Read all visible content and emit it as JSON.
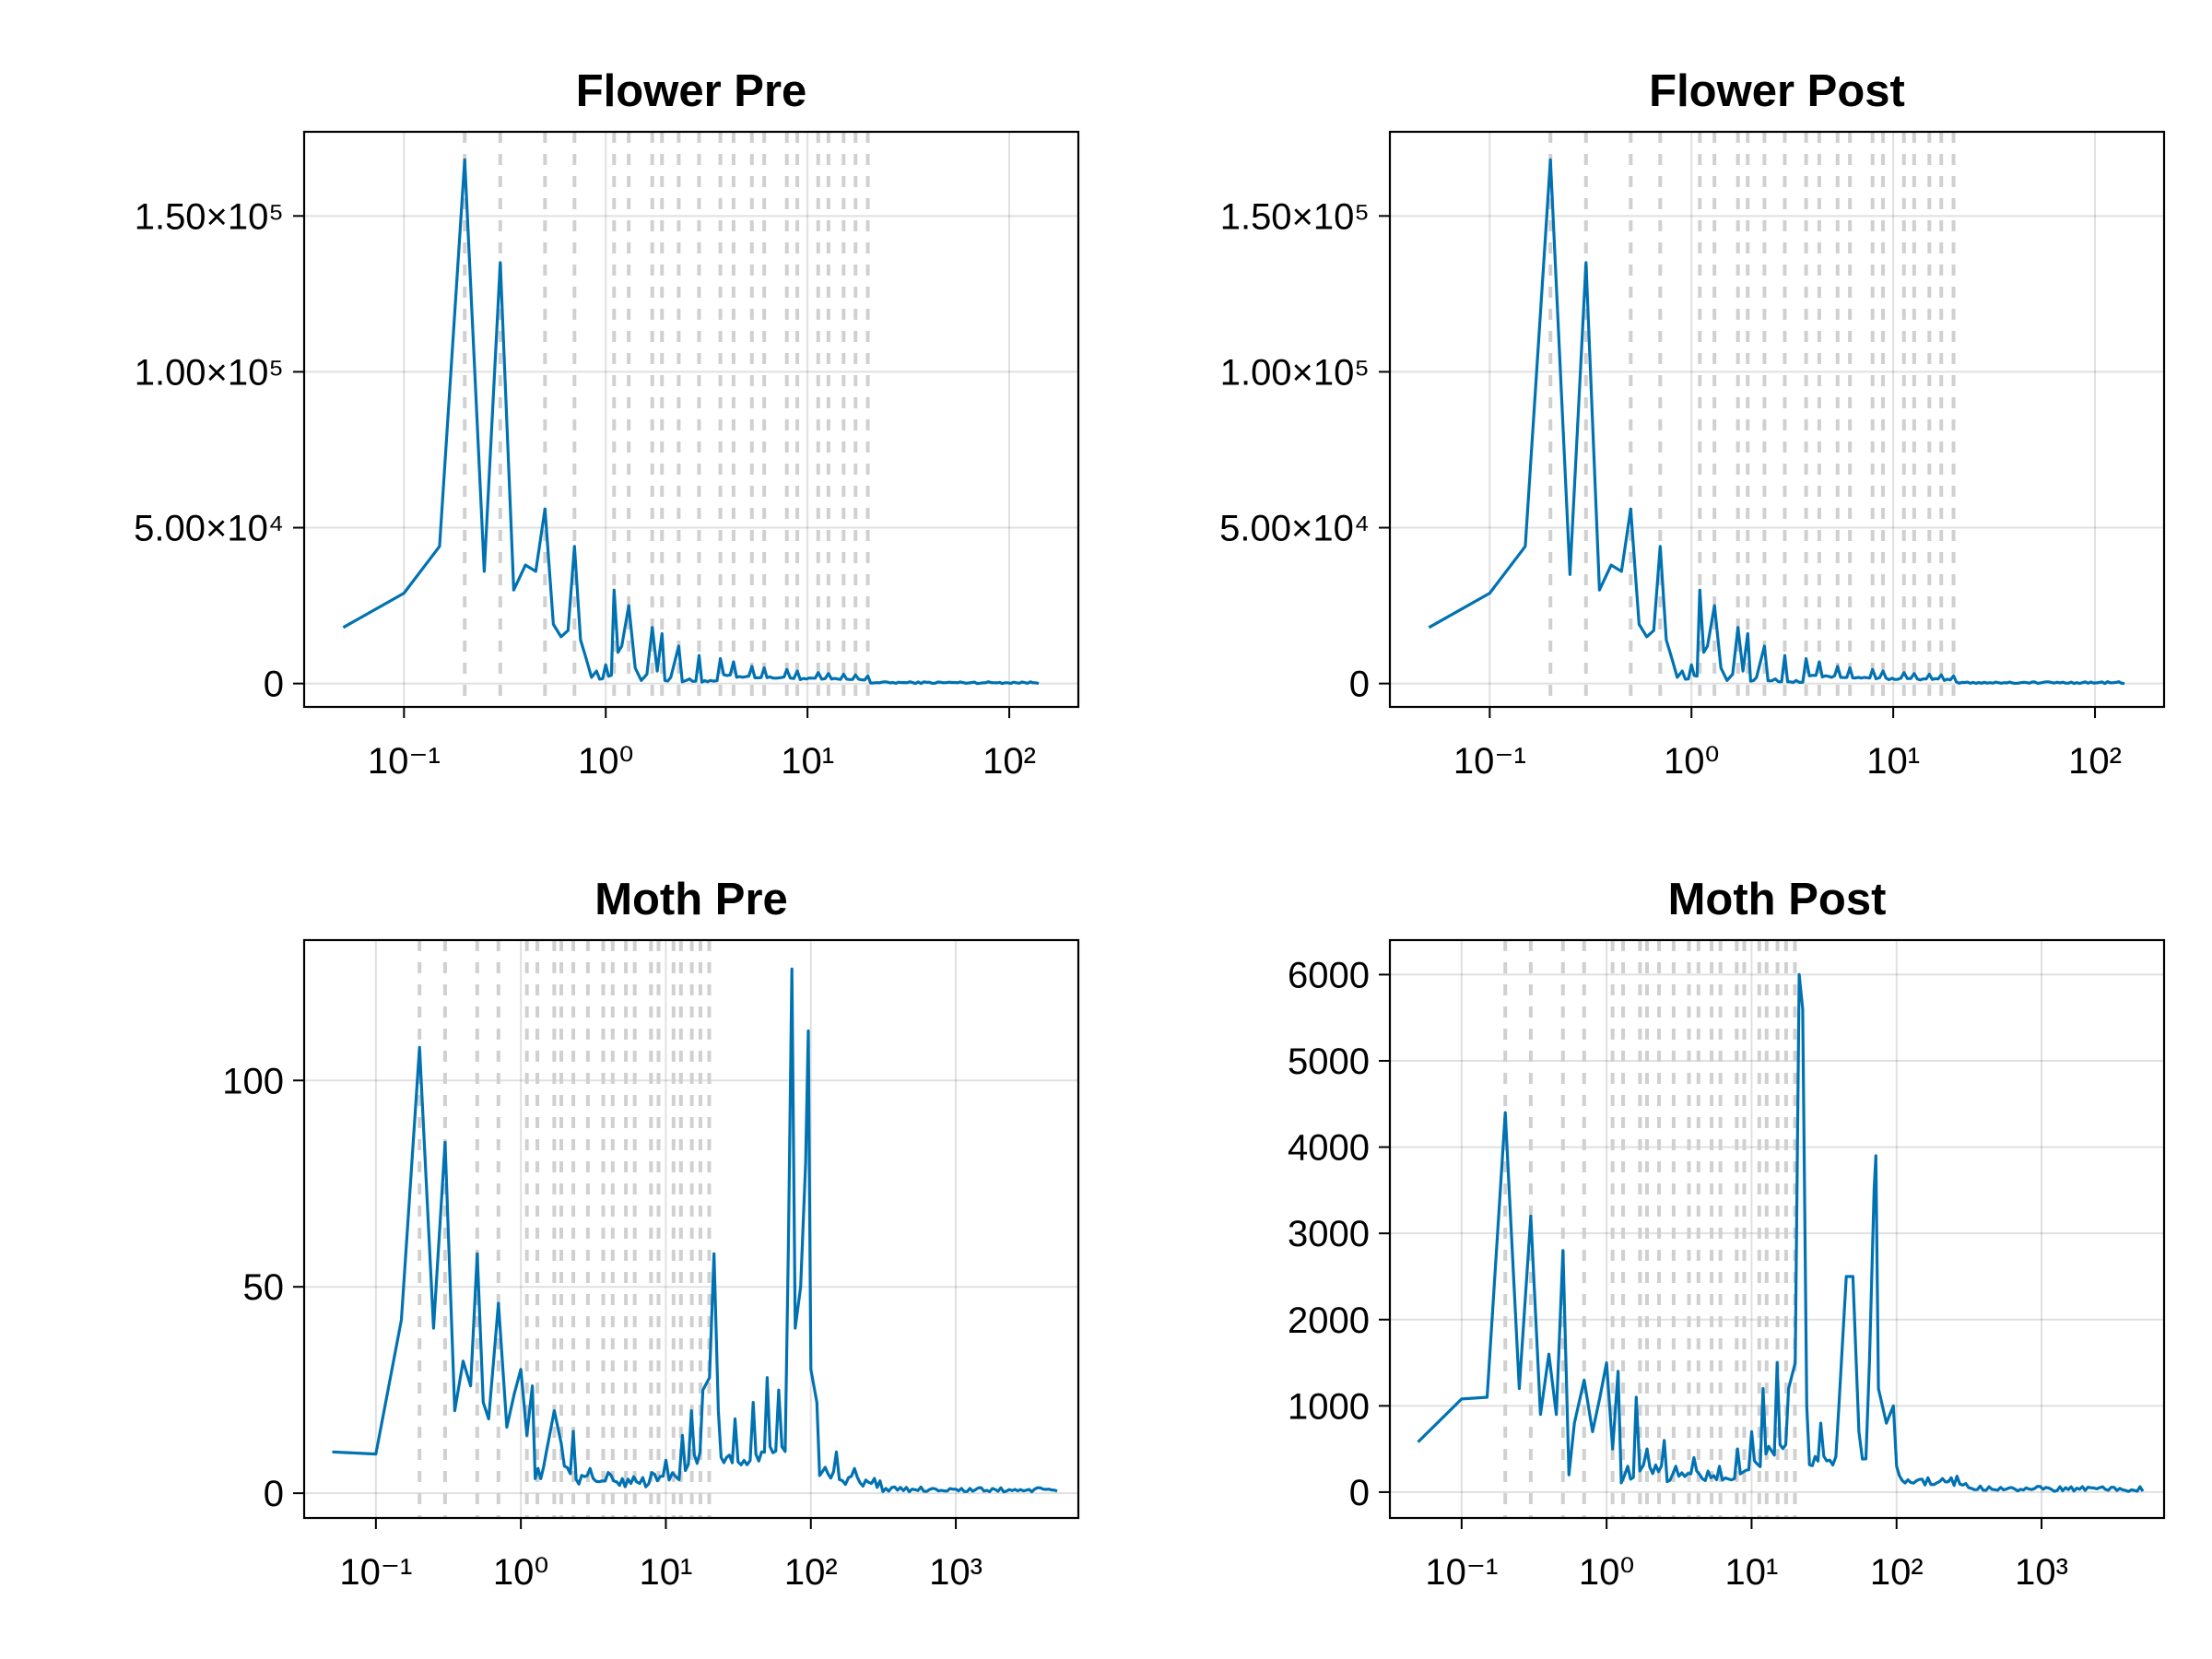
{
  "colors": {
    "series": "#0072b2",
    "marker": "#d0d0d0",
    "grid": "#e5e5e5"
  },
  "chart_data": [
    {
      "type": "line",
      "title": "Flower Pre",
      "xlabel": "",
      "ylabel": "",
      "xscale": "log",
      "xlim": [
        0.032,
        220
      ],
      "ylim": [
        -7500,
        177000
      ],
      "grid": true,
      "x_ticks": [
        0.1,
        1,
        10,
        100
      ],
      "x_tick_labels": [
        "10⁻¹",
        "10⁰",
        "10¹",
        "10²"
      ],
      "y_ticks": [
        0,
        50000,
        100000,
        150000
      ],
      "y_tick_labels": [
        "0",
        "5.00×10⁴",
        "1.00×10⁵",
        "1.50×10⁵"
      ],
      "markers": [
        0.2,
        0.3,
        0.5,
        0.7,
        1.1,
        1.3,
        1.7,
        1.9,
        2.3,
        2.9,
        3.7,
        4.3,
        5.3,
        6.1,
        7.9,
        8.9,
        11.3,
        12.7,
        15.1,
        17.3,
        19.9
      ],
      "peaks": [
        [
          0.05,
          18000
        ],
        [
          0.1,
          29000
        ],
        [
          0.15,
          44000
        ],
        [
          0.2,
          168000
        ],
        [
          0.25,
          36000
        ],
        [
          0.3,
          135000
        ],
        [
          0.35,
          30000
        ],
        [
          0.4,
          38000
        ],
        [
          0.45,
          36000
        ],
        [
          0.5,
          56000
        ],
        [
          0.55,
          19000
        ],
        [
          0.6,
          15000
        ],
        [
          0.65,
          17000
        ],
        [
          0.7,
          44000
        ],
        [
          0.75,
          14000
        ],
        [
          0.8,
          8000
        ],
        [
          0.85,
          2000
        ],
        [
          0.9,
          4000
        ],
        [
          1.0,
          6000
        ],
        [
          1.1,
          30000
        ],
        [
          1.15,
          10000
        ],
        [
          1.2,
          12000
        ],
        [
          1.3,
          25000
        ],
        [
          1.4,
          5000
        ],
        [
          1.5,
          1000
        ],
        [
          1.6,
          3000
        ],
        [
          1.7,
          18000
        ],
        [
          1.8,
          4000
        ],
        [
          1.9,
          16000
        ],
        [
          2.1,
          2000
        ],
        [
          2.3,
          12000
        ],
        [
          2.6,
          1500
        ],
        [
          2.9,
          9000
        ],
        [
          3.3,
          1000
        ],
        [
          3.7,
          8000
        ],
        [
          4.3,
          7000
        ],
        [
          5.3,
          5500
        ],
        [
          6.1,
          5000
        ],
        [
          7.9,
          4500
        ],
        [
          8.9,
          4000
        ],
        [
          11.3,
          3500
        ],
        [
          12.7,
          3200
        ],
        [
          15.1,
          3000
        ],
        [
          17.3,
          2800
        ],
        [
          19.9,
          2500
        ],
        [
          140,
          0
        ]
      ],
      "noise": 600
    },
    {
      "type": "line",
      "title": "Flower Post",
      "xlabel": "",
      "ylabel": "",
      "xscale": "log",
      "xlim": [
        0.032,
        220
      ],
      "ylim": [
        -7500,
        177000
      ],
      "grid": true,
      "x_ticks": [
        0.1,
        1,
        10,
        100
      ],
      "x_tick_labels": [
        "10⁻¹",
        "10⁰",
        "10¹",
        "10²"
      ],
      "y_ticks": [
        0,
        50000,
        100000,
        150000
      ],
      "y_tick_labels": [
        "0",
        "5.00×10⁴",
        "1.00×10⁵",
        "1.50×10⁵"
      ],
      "markers": [
        0.2,
        0.3,
        0.5,
        0.7,
        1.1,
        1.3,
        1.7,
        1.9,
        2.3,
        2.9,
        3.7,
        4.3,
        5.3,
        6.1,
        7.9,
        8.9,
        11.3,
        12.7,
        15.1,
        17.3,
        19.9
      ],
      "peaks": [
        [
          0.05,
          18000
        ],
        [
          0.1,
          29000
        ],
        [
          0.15,
          44000
        ],
        [
          0.2,
          168000
        ],
        [
          0.25,
          35000
        ],
        [
          0.3,
          135000
        ],
        [
          0.35,
          30000
        ],
        [
          0.4,
          38000
        ],
        [
          0.45,
          36000
        ],
        [
          0.5,
          56000
        ],
        [
          0.55,
          19000
        ],
        [
          0.6,
          15000
        ],
        [
          0.65,
          17000
        ],
        [
          0.7,
          44000
        ],
        [
          0.75,
          14000
        ],
        [
          0.8,
          8000
        ],
        [
          0.85,
          2000
        ],
        [
          0.9,
          4000
        ],
        [
          1.0,
          6000
        ],
        [
          1.1,
          30000
        ],
        [
          1.15,
          10000
        ],
        [
          1.2,
          12000
        ],
        [
          1.3,
          25000
        ],
        [
          1.4,
          5000
        ],
        [
          1.5,
          1000
        ],
        [
          1.6,
          3000
        ],
        [
          1.7,
          18000
        ],
        [
          1.8,
          4000
        ],
        [
          1.9,
          16000
        ],
        [
          2.1,
          2000
        ],
        [
          2.3,
          12000
        ],
        [
          2.6,
          1500
        ],
        [
          2.9,
          9000
        ],
        [
          3.3,
          1000
        ],
        [
          3.7,
          8000
        ],
        [
          4.3,
          7000
        ],
        [
          5.3,
          5500
        ],
        [
          6.1,
          5000
        ],
        [
          7.9,
          4500
        ],
        [
          8.9,
          4000
        ],
        [
          11.3,
          3500
        ],
        [
          12.7,
          3200
        ],
        [
          15.1,
          3000
        ],
        [
          17.3,
          2800
        ],
        [
          19.9,
          2500
        ],
        [
          140,
          0
        ]
      ],
      "noise": 600
    },
    {
      "type": "line",
      "title": "Moth Pre",
      "xlabel": "",
      "ylabel": "",
      "xscale": "log",
      "xlim": [
        0.032,
        7000
      ],
      "ylim": [
        -6,
        134
      ],
      "grid": true,
      "x_ticks": [
        0.1,
        1,
        10,
        100,
        1000
      ],
      "x_tick_labels": [
        "10⁻¹",
        "10⁰",
        "10¹",
        "10²",
        "10³"
      ],
      "y_ticks": [
        0,
        50,
        100
      ],
      "y_tick_labels": [
        "0",
        "50",
        "100"
      ],
      "markers": [
        0.2,
        0.3,
        0.5,
        0.7,
        1.1,
        1.3,
        1.7,
        1.9,
        2.3,
        2.9,
        3.7,
        4.3,
        5.3,
        6.1,
        7.9,
        8.9,
        11.3,
        12.7,
        15.1,
        17.3,
        19.9
      ],
      "peaks": [
        [
          0.05,
          10
        ],
        [
          0.1,
          9.5
        ],
        [
          0.15,
          42
        ],
        [
          0.2,
          108
        ],
        [
          0.25,
          40
        ],
        [
          0.3,
          85
        ],
        [
          0.35,
          20
        ],
        [
          0.4,
          32
        ],
        [
          0.45,
          26
        ],
        [
          0.5,
          58
        ],
        [
          0.55,
          22
        ],
        [
          0.6,
          18
        ],
        [
          0.7,
          46
        ],
        [
          0.8,
          16
        ],
        [
          0.9,
          24
        ],
        [
          1.0,
          30
        ],
        [
          1.1,
          14
        ],
        [
          1.2,
          26
        ],
        [
          1.5,
          10
        ],
        [
          1.7,
          20
        ],
        [
          1.9,
          12
        ],
        [
          2.3,
          15
        ],
        [
          3,
          6
        ],
        [
          4,
          5
        ],
        [
          6,
          4
        ],
        [
          8,
          5
        ],
        [
          10,
          8
        ],
        [
          13,
          14
        ],
        [
          15,
          20
        ],
        [
          18,
          25
        ],
        [
          20,
          28
        ],
        [
          21.5,
          58
        ],
        [
          23,
          20
        ],
        [
          30,
          18
        ],
        [
          40,
          22
        ],
        [
          50,
          28
        ],
        [
          60,
          25
        ],
        [
          70,
          60
        ],
        [
          74,
          127
        ],
        [
          78,
          40
        ],
        [
          85,
          50
        ],
        [
          92,
          80
        ],
        [
          96,
          112
        ],
        [
          100,
          30
        ],
        [
          110,
          22
        ],
        [
          150,
          10
        ],
        [
          200,
          6
        ],
        [
          300,
          3
        ],
        [
          500,
          1
        ],
        [
          1000,
          1
        ],
        [
          5000,
          0.5
        ]
      ],
      "noise": 3
    },
    {
      "type": "line",
      "title": "Moth Post",
      "xlabel": "",
      "ylabel": "",
      "xscale": "log",
      "xlim": [
        0.032,
        7000
      ],
      "ylim": [
        -300,
        6400
      ],
      "grid": true,
      "x_ticks": [
        0.1,
        1,
        10,
        100,
        1000
      ],
      "x_tick_labels": [
        "10⁻¹",
        "10⁰",
        "10¹",
        "10²",
        "10³"
      ],
      "y_ticks": [
        0,
        1000,
        2000,
        3000,
        4000,
        5000,
        6000
      ],
      "y_tick_labels": [
        "0",
        "1000",
        "2000",
        "3000",
        "4000",
        "5000",
        "6000"
      ],
      "markers": [
        0.2,
        0.3,
        0.5,
        0.7,
        1.1,
        1.3,
        1.7,
        1.9,
        2.3,
        2.9,
        3.7,
        4.3,
        5.3,
        6.1,
        7.9,
        8.9,
        11.3,
        12.7,
        15.1,
        17.3,
        19.9
      ],
      "peaks": [
        [
          0.05,
          580
        ],
        [
          0.1,
          1080
        ],
        [
          0.15,
          1100
        ],
        [
          0.2,
          4400
        ],
        [
          0.25,
          1200
        ],
        [
          0.3,
          3200
        ],
        [
          0.35,
          900
        ],
        [
          0.4,
          1600
        ],
        [
          0.45,
          900
        ],
        [
          0.5,
          2800
        ],
        [
          0.55,
          200
        ],
        [
          0.6,
          800
        ],
        [
          0.7,
          1300
        ],
        [
          0.8,
          700
        ],
        [
          0.9,
          1100
        ],
        [
          1.0,
          1500
        ],
        [
          1.1,
          500
        ],
        [
          1.2,
          1400
        ],
        [
          1.4,
          300
        ],
        [
          1.6,
          1100
        ],
        [
          1.9,
          500
        ],
        [
          2.5,
          600
        ],
        [
          3,
          300
        ],
        [
          4,
          400
        ],
        [
          6,
          300
        ],
        [
          8,
          500
        ],
        [
          10,
          700
        ],
        [
          12,
          1200
        ],
        [
          15,
          1500
        ],
        [
          18,
          1200
        ],
        [
          20,
          1500
        ],
        [
          21.3,
          6000
        ],
        [
          22.5,
          5600
        ],
        [
          24,
          1000
        ],
        [
          30,
          800
        ],
        [
          40,
          1000
        ],
        [
          45,
          2500
        ],
        [
          50,
          2500
        ],
        [
          55,
          700
        ],
        [
          65,
          1500
        ],
        [
          70,
          3500
        ],
        [
          72,
          3900
        ],
        [
          75,
          1200
        ],
        [
          85,
          800
        ],
        [
          95,
          1000
        ],
        [
          100,
          300
        ],
        [
          150,
          150
        ],
        [
          300,
          100
        ],
        [
          600,
          50
        ],
        [
          2000,
          20
        ],
        [
          5000,
          10
        ]
      ],
      "noise": 150
    }
  ]
}
